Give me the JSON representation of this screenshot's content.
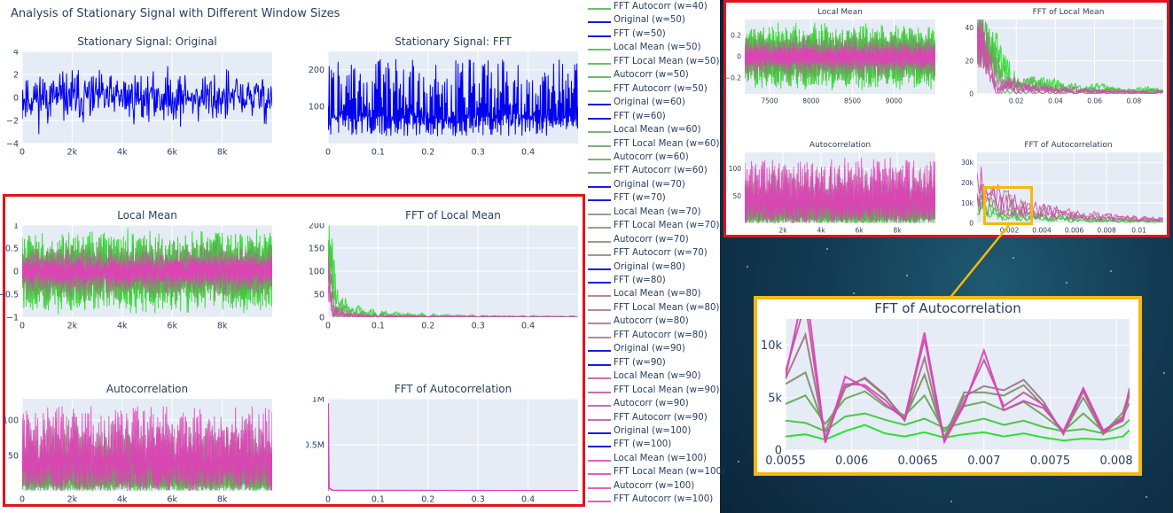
{
  "main_title": "Analysis of Stationary Signal with Different Window Sizes",
  "colors": {
    "original": "#0000ee",
    "green": "#22e022",
    "magenta": "#e040b8",
    "plot_bg": "#e5ecf6",
    "red_highlight": "#e0141e",
    "gold_highlight": "#f5b90f"
  },
  "legend": [
    {
      "label": "FFT Autocorr (w=40)",
      "color": "#5ec85e"
    },
    {
      "label": "Original (w=50)",
      "color": "#1a1ae0"
    },
    {
      "label": "FFT (w=50)",
      "color": "#1a1ae0"
    },
    {
      "label": "Local Mean (w=50)",
      "color": "#6cbf6c"
    },
    {
      "label": "FFT Local Mean (w=50)",
      "color": "#6cbf6c"
    },
    {
      "label": "Autocorr (w=50)",
      "color": "#6cbf6c"
    },
    {
      "label": "FFT Autocorr (w=50)",
      "color": "#6cbf6c"
    },
    {
      "label": "Original (w=60)",
      "color": "#1a1ae0"
    },
    {
      "label": "FFT (w=60)",
      "color": "#1a1ae0"
    },
    {
      "label": "Local Mean (w=60)",
      "color": "#83ad7f"
    },
    {
      "label": "FFT Local Mean (w=60)",
      "color": "#83ad7f"
    },
    {
      "label": "Autocorr (w=60)",
      "color": "#83ad7f"
    },
    {
      "label": "FFT Autocorr (w=60)",
      "color": "#83ad7f"
    },
    {
      "label": "Original (w=70)",
      "color": "#1a1ae0"
    },
    {
      "label": "FFT (w=70)",
      "color": "#1a1ae0"
    },
    {
      "label": "Local Mean (w=70)",
      "color": "#a49a8c"
    },
    {
      "label": "FFT Local Mean (w=70)",
      "color": "#a49a8c"
    },
    {
      "label": "Autocorr (w=70)",
      "color": "#a49a8c"
    },
    {
      "label": "FFT Autocorr (w=70)",
      "color": "#a49a8c"
    },
    {
      "label": "Original (w=80)",
      "color": "#1a1ae0"
    },
    {
      "label": "FFT (w=80)",
      "color": "#1a1ae0"
    },
    {
      "label": "Local Mean (w=80)",
      "color": "#b5899c"
    },
    {
      "label": "FFT Local Mean (w=80)",
      "color": "#b5899c"
    },
    {
      "label": "Autocorr (w=80)",
      "color": "#b5899c"
    },
    {
      "label": "FFT Autocorr (w=80)",
      "color": "#b5899c"
    },
    {
      "label": "Original (w=90)",
      "color": "#1a1ae0"
    },
    {
      "label": "FFT (w=90)",
      "color": "#1a1ae0"
    },
    {
      "label": "Local Mean (w=90)",
      "color": "#cc6fae"
    },
    {
      "label": "FFT Local Mean (w=90)",
      "color": "#cc6fae"
    },
    {
      "label": "Autocorr (w=90)",
      "color": "#cc6fae"
    },
    {
      "label": "FFT Autocorr (w=90)",
      "color": "#cc6fae"
    },
    {
      "label": "Original (w=100)",
      "color": "#1a1ae0"
    },
    {
      "label": "FFT (w=100)",
      "color": "#1a1ae0"
    },
    {
      "label": "Local Mean (w=100)",
      "color": "#e060c0"
    },
    {
      "label": "FFT Local Mean (w=100)",
      "color": "#e060c0"
    },
    {
      "label": "Autocorr (w=100)",
      "color": "#e060c0"
    },
    {
      "label": "FFT Autocorr (w=100)",
      "color": "#e060c0"
    }
  ],
  "chart_data": [
    {
      "id": "orig",
      "type": "line",
      "title": "Stationary Signal: Original",
      "xlim": [
        0,
        10000
      ],
      "ylim": [
        -4,
        4
      ],
      "xticks": [
        0,
        2000,
        4000,
        6000,
        8000
      ],
      "xticklabels": [
        "0",
        "2k",
        "4k",
        "6k",
        "8k"
      ],
      "yticks": [
        -4,
        -2,
        0,
        2,
        4
      ],
      "yticklabels": [
        "−4",
        "−2",
        "0",
        "2",
        "4"
      ],
      "grid": true,
      "series": [
        {
          "values_summary": "white noise around 0, range about -3.5 to 3.5",
          "envelope": [
            -3.5,
            3.5
          ]
        }
      ]
    },
    {
      "id": "fft",
      "type": "line",
      "title": "Stationary Signal: FFT",
      "xlim": [
        0,
        0.5
      ],
      "ylim": [
        0,
        250
      ],
      "xticks": [
        0,
        0.1,
        0.2,
        0.3,
        0.4
      ],
      "xticklabels": [
        "0",
        "0.1",
        "0.2",
        "0.3",
        "0.4"
      ],
      "yticks": [
        100,
        200
      ],
      "yticklabels": [
        "100",
        "200"
      ],
      "grid": true,
      "series": [
        {
          "envelope": [
            0,
            230
          ]
        }
      ]
    },
    {
      "id": "localmean",
      "type": "line",
      "title": "Local Mean",
      "xlim": [
        0,
        10000
      ],
      "ylim": [
        -1,
        1
      ],
      "xticks": [
        0,
        2000,
        4000,
        6000,
        8000
      ],
      "xticklabels": [
        "0",
        "2k",
        "4k",
        "6k",
        "8k"
      ],
      "yticks": [
        -1,
        -0.5,
        0,
        0.5,
        1
      ],
      "yticklabels": [
        "−1",
        "−0.5",
        "0",
        "0.5",
        "1"
      ],
      "grid": true,
      "series_windows": [
        40,
        50,
        60,
        70,
        80,
        90,
        100
      ]
    },
    {
      "id": "fftlocalmean",
      "type": "line",
      "title": "FFT of Local Mean",
      "xlim": [
        0,
        0.5
      ],
      "ylim": [
        0,
        200
      ],
      "xticks": [
        0,
        0.1,
        0.2,
        0.3,
        0.4
      ],
      "xticklabels": [
        "0",
        "0.1",
        "0.2",
        "0.3",
        "0.4"
      ],
      "yticks": [
        0,
        50,
        100,
        150,
        200
      ],
      "yticklabels": [
        "0",
        "50",
        "100",
        "150",
        "200"
      ],
      "grid": true
    },
    {
      "id": "autocorr",
      "type": "line",
      "title": "Autocorrelation",
      "xlim": [
        0,
        10000
      ],
      "ylim": [
        0,
        130
      ],
      "xticks": [
        0,
        2000,
        4000,
        6000,
        8000
      ],
      "xticklabels": [
        "0",
        "2k",
        "4k",
        "6k",
        "8k"
      ],
      "yticks": [
        50,
        100
      ],
      "yticklabels": [
        "50",
        "100"
      ],
      "grid": true
    },
    {
      "id": "fftautocorr",
      "type": "line",
      "title": "FFT of Autocorrelation",
      "xlim": [
        0,
        0.5
      ],
      "ylim": [
        0,
        1000000
      ],
      "xticks": [
        0,
        0.1,
        0.2,
        0.3,
        0.4
      ],
      "xticklabels": [
        "0",
        "0.1",
        "0.2",
        "0.3",
        "0.4"
      ],
      "yticks": [
        500000,
        1000000
      ],
      "yticklabels": [
        "0.5M",
        "1M"
      ],
      "grid": true
    },
    {
      "id": "zoom_localmean",
      "type": "line",
      "title": "Local Mean",
      "xlim": [
        7200,
        9500
      ],
      "ylim": [
        -0.35,
        0.35
      ],
      "xticks": [
        7500,
        8000,
        8500,
        9000
      ],
      "xticklabels": [
        "7500",
        "8000",
        "8500",
        "9000"
      ],
      "yticks": [
        -0.2,
        0,
        0.2
      ],
      "yticklabels": [
        "−0.2",
        "0",
        "0.2"
      ]
    },
    {
      "id": "zoom_fftlocalmean",
      "type": "line",
      "title": "FFT of Local Mean",
      "xlim": [
        0,
        0.095
      ],
      "ylim": [
        0,
        45
      ],
      "xticks": [
        0.02,
        0.04,
        0.06,
        0.08
      ],
      "xticklabels": [
        "0.02",
        "0.04",
        "0.06",
        "0.08"
      ],
      "yticks": [
        0,
        20,
        40
      ],
      "yticklabels": [
        "0",
        "20",
        "40"
      ]
    },
    {
      "id": "zoom_autocorr",
      "type": "line",
      "title": "Autocorrelation",
      "xlim": [
        0,
        10000
      ],
      "ylim": [
        0,
        130
      ],
      "xticks": [
        2000,
        4000,
        6000,
        8000
      ],
      "xticklabels": [
        "2k",
        "4k",
        "6k",
        "8k"
      ],
      "yticks": [
        50,
        100
      ],
      "yticklabels": [
        "50",
        "100"
      ]
    },
    {
      "id": "zoom_fftautocorr",
      "type": "line",
      "title": "FFT of Autocorrelation",
      "xlim": [
        0,
        0.0115
      ],
      "ylim": [
        0,
        35000
      ],
      "xticks": [
        0.002,
        0.004,
        0.006,
        0.008,
        0.01
      ],
      "xticklabels": [
        "0.002",
        "0.004",
        "0.006",
        "0.008",
        "0.01"
      ],
      "yticks": [
        0,
        10000,
        20000,
        30000
      ],
      "yticklabels": [
        "0",
        "10k",
        "20k",
        "30k"
      ]
    },
    {
      "id": "detail_fftautocorr",
      "type": "line",
      "title": "FFT of Autocorrelation",
      "xlim": [
        0.0055,
        0.0081
      ],
      "ylim": [
        0,
        12500
      ],
      "xticks": [
        0.0055,
        0.006,
        0.0065,
        0.007,
        0.0075,
        0.008
      ],
      "xticklabels": [
        "0.0055",
        "0.006",
        "0.0065",
        "0.007",
        "0.0075",
        "0.008"
      ],
      "yticks": [
        0,
        5000,
        10000
      ],
      "yticklabels": [
        "0",
        "5k",
        "10k"
      ],
      "x": [
        0.0055,
        0.00565,
        0.0058,
        0.00595,
        0.0061,
        0.00625,
        0.0064,
        0.00655,
        0.0067,
        0.00685,
        0.007,
        0.00715,
        0.0073,
        0.00745,
        0.0076,
        0.00775,
        0.0079,
        0.00805,
        0.0081
      ],
      "series": [
        {
          "window": 40,
          "values": [
            1300,
            1500,
            1000,
            1800,
            2400,
            1600,
            1300,
            1700,
            1200,
            1500,
            1700,
            1300,
            1600,
            1200,
            900,
            1100,
            1000,
            1300,
            1900
          ]
        },
        {
          "window": 50,
          "values": [
            2800,
            2600,
            1800,
            3200,
            3500,
            2900,
            2400,
            3000,
            2100,
            2600,
            3000,
            2400,
            2800,
            2200,
            1800,
            2000,
            1600,
            2300,
            2900
          ]
        },
        {
          "window": 60,
          "values": [
            4400,
            5200,
            2500,
            4900,
            5600,
            4200,
            3300,
            5200,
            1800,
            4200,
            4600,
            3800,
            4600,
            3300,
            1800,
            3500,
            1800,
            3200,
            4500
          ]
        },
        {
          "window": 70,
          "values": [
            6300,
            7400,
            1800,
            6100,
            6800,
            5200,
            3000,
            7200,
            1200,
            5500,
            5500,
            5200,
            6200,
            4200,
            1600,
            5000,
            1600,
            3600,
            5600
          ]
        },
        {
          "window": 80,
          "values": [
            6800,
            11000,
            1200,
            5900,
            6900,
            5300,
            2800,
            8800,
            900,
            5100,
            6100,
            5700,
            6700,
            4600,
            1500,
            5600,
            1500,
            3200,
            5900
          ]
        },
        {
          "window": 90,
          "values": [
            7500,
            14000,
            800,
            6300,
            6200,
            4800,
            2900,
            10600,
            800,
            4600,
            8600,
            4200,
            5500,
            4300,
            1600,
            5800,
            1700,
            3000,
            5600
          ]
        },
        {
          "window": 100,
          "values": [
            7000,
            16000,
            700,
            7000,
            6000,
            4400,
            3000,
            11200,
            800,
            4300,
            9500,
            3800,
            4700,
            4000,
            1800,
            5900,
            1900,
            2800,
            5400
          ]
        }
      ]
    }
  ]
}
